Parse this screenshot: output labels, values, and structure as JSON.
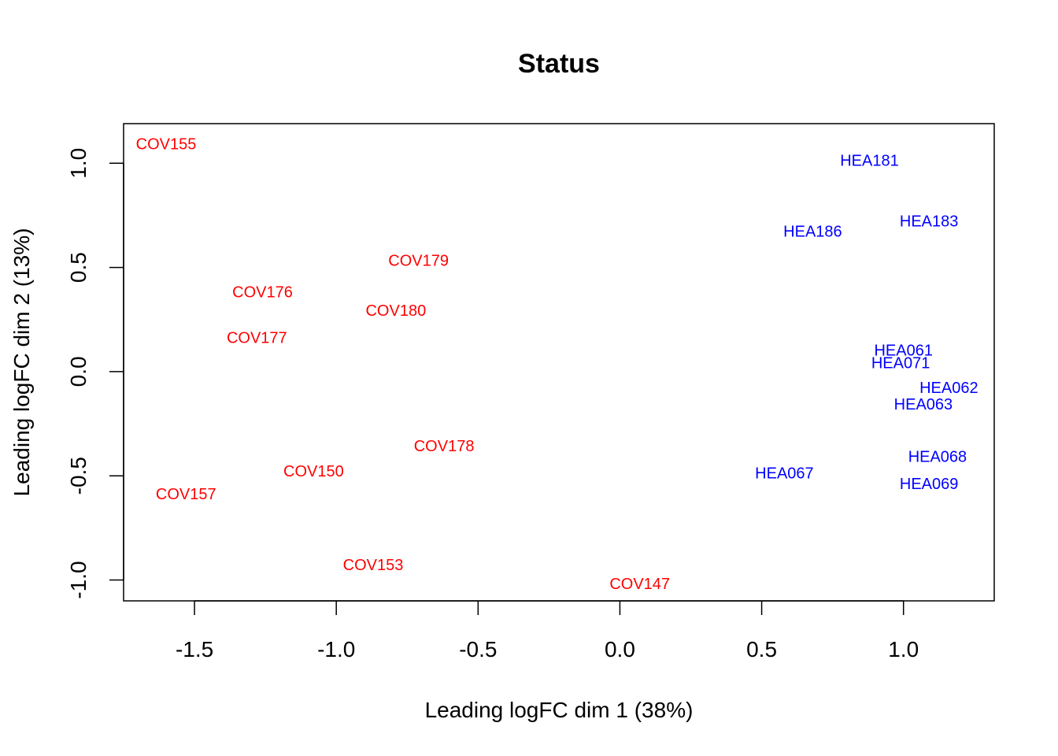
{
  "chart_data": {
    "type": "scatter",
    "title": "Status",
    "xlabel": "Leading logFC dim 1 (38%)",
    "ylabel": "Leading logFC dim 2 (13%)",
    "xlim": [
      -1.75,
      1.32
    ],
    "ylim": [
      -1.1,
      1.19
    ],
    "x_ticks": [
      -1.5,
      -1.0,
      -0.5,
      0.0,
      0.5,
      1.0
    ],
    "x_tick_labels": [
      "-1.5",
      "-1.0",
      "-0.5",
      "0.0",
      "0.5",
      "1.0"
    ],
    "y_ticks": [
      -1.0,
      -0.5,
      0.0,
      0.5,
      1.0
    ],
    "y_tick_labels": [
      "-1.0",
      "-0.5",
      "0.0",
      "0.5",
      "1.0"
    ],
    "grid": false,
    "colors": {
      "COV": "#ff0000",
      "HEA": "#0000ff"
    },
    "points": [
      {
        "label": "COV155",
        "x": -1.6,
        "y": 1.09,
        "group": "COV"
      },
      {
        "label": "COV179",
        "x": -0.71,
        "y": 0.53,
        "group": "COV"
      },
      {
        "label": "COV176",
        "x": -1.26,
        "y": 0.38,
        "group": "COV"
      },
      {
        "label": "COV180",
        "x": -0.79,
        "y": 0.29,
        "group": "COV"
      },
      {
        "label": "COV177",
        "x": -1.28,
        "y": 0.16,
        "group": "COV"
      },
      {
        "label": "COV178",
        "x": -0.62,
        "y": -0.36,
        "group": "COV"
      },
      {
        "label": "COV150",
        "x": -1.08,
        "y": -0.48,
        "group": "COV"
      },
      {
        "label": "COV157",
        "x": -1.53,
        "y": -0.59,
        "group": "COV"
      },
      {
        "label": "COV153",
        "x": -0.87,
        "y": -0.93,
        "group": "COV"
      },
      {
        "label": "COV147",
        "x": 0.07,
        "y": -1.02,
        "group": "COV"
      },
      {
        "label": "HEA181",
        "x": 0.88,
        "y": 1.01,
        "group": "HEA"
      },
      {
        "label": "HEA183",
        "x": 1.09,
        "y": 0.72,
        "group": "HEA"
      },
      {
        "label": "HEA186",
        "x": 0.68,
        "y": 0.67,
        "group": "HEA"
      },
      {
        "label": "HEA061",
        "x": 1.0,
        "y": 0.1,
        "group": "HEA"
      },
      {
        "label": "HEA071",
        "x": 0.99,
        "y": 0.04,
        "group": "HEA"
      },
      {
        "label": "HEA062",
        "x": 1.16,
        "y": -0.08,
        "group": "HEA"
      },
      {
        "label": "HEA063",
        "x": 1.07,
        "y": -0.16,
        "group": "HEA"
      },
      {
        "label": "HEA068",
        "x": 1.12,
        "y": -0.41,
        "group": "HEA"
      },
      {
        "label": "HEA067",
        "x": 0.58,
        "y": -0.49,
        "group": "HEA"
      },
      {
        "label": "HEA069",
        "x": 1.09,
        "y": -0.54,
        "group": "HEA"
      }
    ]
  }
}
